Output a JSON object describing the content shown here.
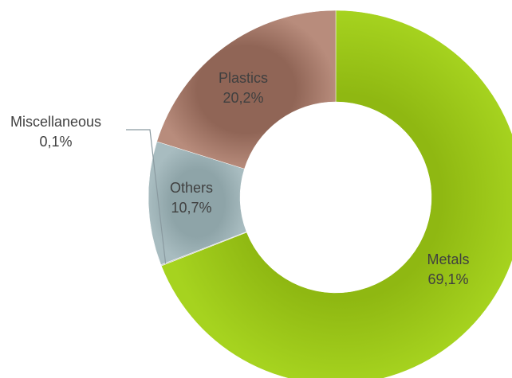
{
  "chart_data": {
    "type": "pie",
    "variant": "donut",
    "slices": [
      {
        "name": "Metals",
        "value": 69.1,
        "label": "69,1%",
        "color": "#9acd1a"
      },
      {
        "name": "Miscellaneous",
        "value": 0.1,
        "label": "0,1%",
        "color": "#c9c9c9"
      },
      {
        "name": "Others",
        "value": 10.7,
        "label": "10,7%",
        "color": "#9fb5b9"
      },
      {
        "name": "Plastics",
        "value": 20.2,
        "label": "20,2%",
        "color": "#a97a6a"
      }
    ],
    "start_angle_deg": 0,
    "direction": "clockwise",
    "legend": "none"
  }
}
